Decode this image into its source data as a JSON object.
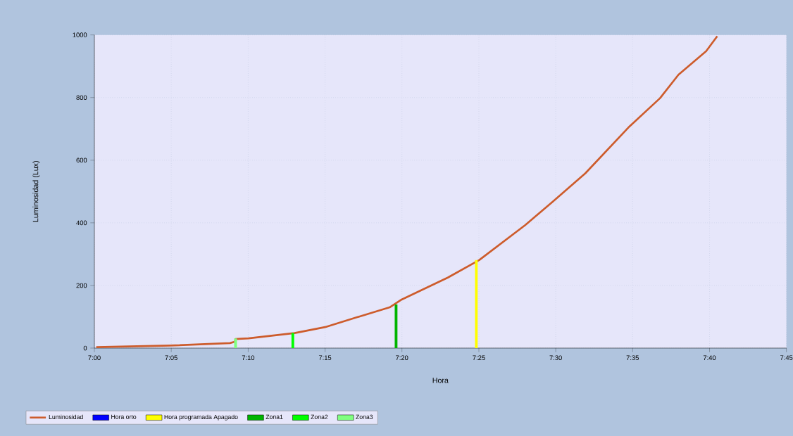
{
  "chart_data": {
    "type": "line",
    "xlabel": "Hora",
    "ylabel": "Luminosidad (Lux)",
    "xlim": [
      7,
      7.75
    ],
    "ylim": [
      0,
      1000
    ],
    "xticks": [
      {
        "value": 7.0,
        "label": "7:00"
      },
      {
        "value": 7.0833,
        "label": "7:05"
      },
      {
        "value": 7.1667,
        "label": "7:10"
      },
      {
        "value": 7.25,
        "label": "7:15"
      },
      {
        "value": 7.3333,
        "label": "7:20"
      },
      {
        "value": 7.4167,
        "label": "7:25"
      },
      {
        "value": 7.5,
        "label": "7:30"
      },
      {
        "value": 7.5833,
        "label": "7:35"
      },
      {
        "value": 7.6667,
        "label": "7:40"
      },
      {
        "value": 7.75,
        "label": "7:45"
      }
    ],
    "yticks": [
      0,
      200,
      400,
      600,
      800,
      1000
    ],
    "grid": true,
    "legend": "bottom",
    "series": [
      {
        "name": "Luminosidad",
        "color": "#cd5c2c",
        "x": [
          7.002,
          7.082,
          7.147,
          7.152,
          7.153,
          7.167,
          7.217,
          7.25,
          7.283,
          7.32,
          7.333,
          7.383,
          7.417,
          7.467,
          7.497,
          7.532,
          7.58,
          7.613,
          7.633,
          7.663,
          7.675
        ],
        "values": [
          3,
          8,
          16,
          20,
          29,
          31,
          48,
          67,
          97,
          130,
          155,
          225,
          281,
          393,
          468,
          558,
          708,
          798,
          873,
          948,
          996
        ]
      },
      {
        "name": "Hora orto",
        "type": "bar",
        "color": "#0000ff"
      },
      {
        "name": "Hora programada Apagado",
        "type": "bar",
        "color": "#ffff00",
        "x": [
          7.414
        ],
        "values": [
          281
        ]
      },
      {
        "name": "Zona1",
        "type": "bar",
        "color": "#00b400",
        "x": [
          7.327
        ],
        "values": [
          139
        ]
      },
      {
        "name": "Zona2",
        "type": "bar",
        "color": "#00ff00",
        "x": [
          7.215
        ],
        "values": [
          48
        ]
      },
      {
        "name": "Zona3",
        "type": "bar",
        "color": "#80ff80",
        "x": [
          7.153
        ],
        "values": [
          31
        ]
      }
    ]
  }
}
